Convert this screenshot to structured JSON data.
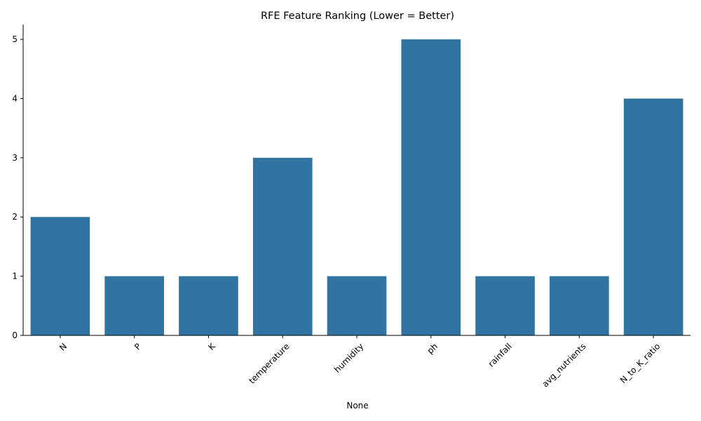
{
  "chart_data": {
    "type": "bar",
    "title": "RFE Feature Ranking (Lower = Better)",
    "xlabel": "None",
    "ylabel": "",
    "categories": [
      "N",
      "P",
      "K",
      "temperature",
      "humidity",
      "ph",
      "rainfall",
      "avg_nutrients",
      "N_to_K_ratio"
    ],
    "values": [
      2,
      1,
      1,
      3,
      1,
      5,
      1,
      1,
      4
    ],
    "ylim": [
      0,
      5.25
    ],
    "yticks": [
      0,
      1,
      2,
      3,
      4,
      5
    ],
    "bar_color": "#3274a1",
    "grid": false,
    "legend": "none"
  }
}
